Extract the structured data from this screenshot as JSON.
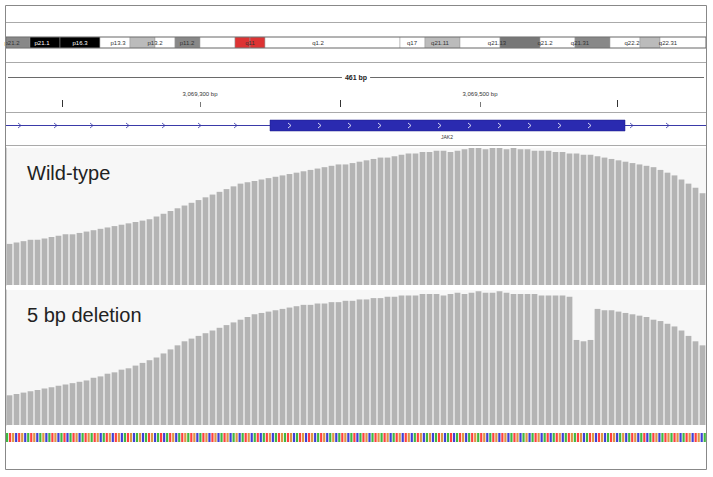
{
  "header": {
    "cytobands": [
      "p21.2",
      "p21.1",
      "p16.3",
      "p13.3",
      "p13.2",
      "p11.2",
      "q11",
      "q1.2",
      "q17",
      "q21.11",
      "q21.13",
      "q21.2",
      "q21.31",
      "q22.2",
      "q22.31"
    ],
    "span": "461 bp",
    "ruler_labels": [
      "3,069,300 bp",
      "3,069,500 bp"
    ],
    "gene": "JAK2"
  },
  "chart_data": [
    {
      "type": "bar",
      "title": "Wild-type",
      "color": "#b4b4b4",
      "ylim": [
        0,
        100
      ],
      "tick_labels": false,
      "grid": false,
      "values": [
        30,
        31,
        32,
        33,
        33,
        34,
        35,
        36,
        37,
        37,
        38,
        39,
        40,
        41,
        42,
        43,
        44,
        45,
        46,
        47,
        48,
        50,
        52,
        54,
        56,
        58,
        60,
        62,
        64,
        66,
        68,
        70,
        72,
        74,
        75,
        76,
        77,
        78,
        79,
        80,
        81,
        82,
        83,
        84,
        85,
        86,
        87,
        88,
        88,
        89,
        90,
        91,
        92,
        93,
        93,
        94,
        95,
        96,
        96,
        97,
        97,
        98,
        98,
        97,
        98,
        99,
        100,
        100,
        99,
        100,
        100,
        99,
        100,
        99,
        99,
        98,
        98,
        98,
        97,
        97,
        96,
        96,
        95,
        95,
        94,
        93,
        92,
        91,
        90,
        89,
        88,
        87,
        86,
        84,
        82,
        80,
        77,
        74,
        71,
        67
      ]
    },
    {
      "type": "bar",
      "title": "5 bp deletion",
      "color": "#b4b4b4",
      "ylim": [
        0,
        100
      ],
      "tick_labels": false,
      "grid": false,
      "values": [
        22,
        23,
        24,
        25,
        26,
        27,
        28,
        29,
        30,
        31,
        32,
        33,
        35,
        36,
        38,
        39,
        41,
        42,
        44,
        46,
        48,
        50,
        53,
        56,
        59,
        62,
        64,
        66,
        68,
        70,
        72,
        74,
        76,
        78,
        80,
        82,
        83,
        84,
        85,
        86,
        87,
        88,
        89,
        89,
        90,
        90,
        91,
        91,
        92,
        92,
        93,
        93,
        94,
        94,
        95,
        95,
        96,
        96,
        96,
        97,
        97,
        97,
        96,
        97,
        98,
        97,
        98,
        99,
        98,
        98,
        99,
        98,
        97,
        97,
        97,
        97,
        96,
        96,
        96,
        96,
        95,
        63,
        62,
        63,
        86,
        85,
        85,
        84,
        83,
        82,
        81,
        80,
        78,
        77,
        75,
        73,
        70,
        66,
        62,
        59
      ]
    }
  ]
}
